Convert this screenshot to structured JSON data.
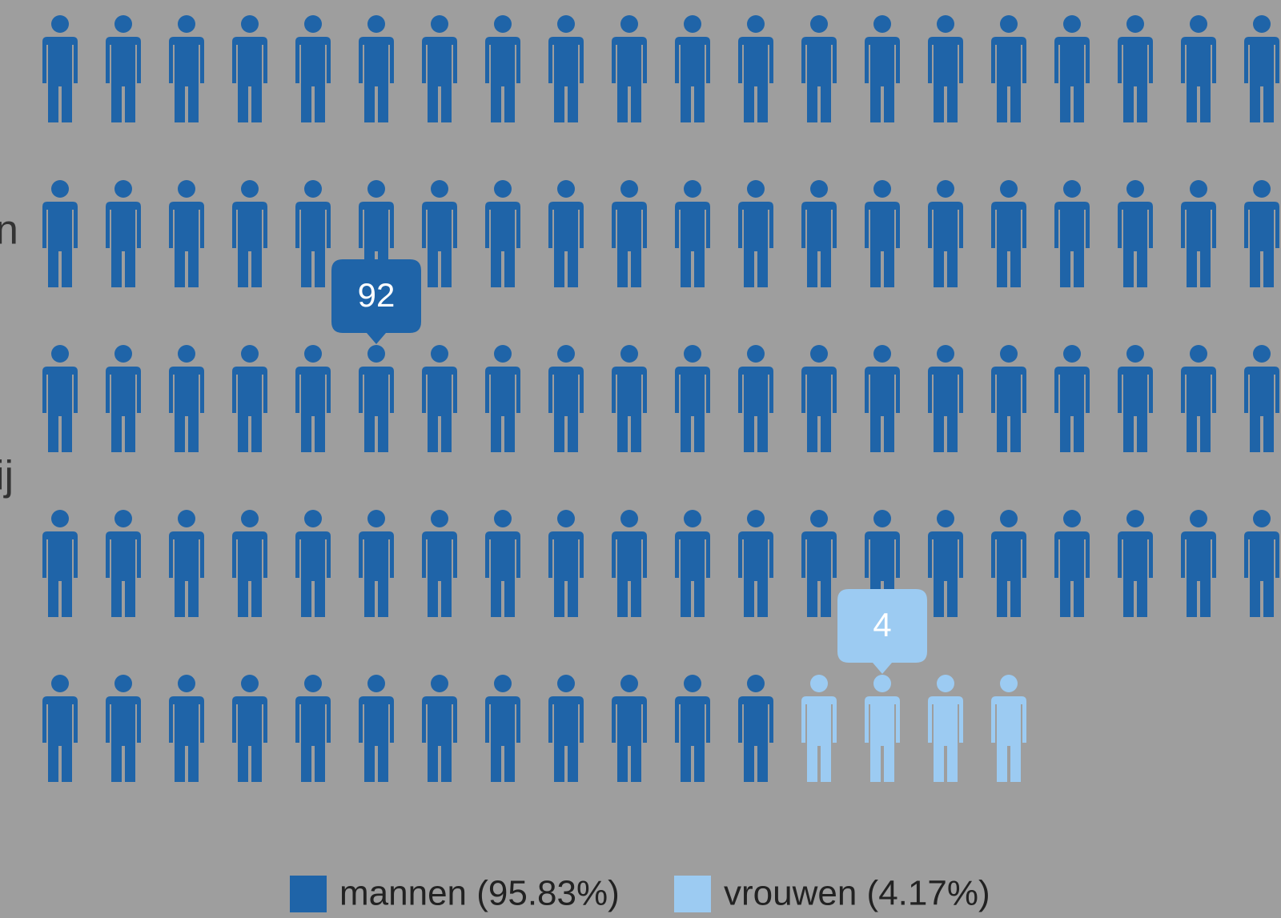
{
  "chart_data": {
    "type": "pictogram",
    "per_row": 20,
    "series": [
      {
        "name": "mannen (95.83%)",
        "color": "#1f64a8",
        "values": [
          92
        ]
      },
      {
        "name": "vrouwen (4.17%)",
        "color": "#9ccbf2",
        "values": [
          4
        ]
      }
    ],
    "side_labels": [
      "n",
      "ij"
    ]
  }
}
